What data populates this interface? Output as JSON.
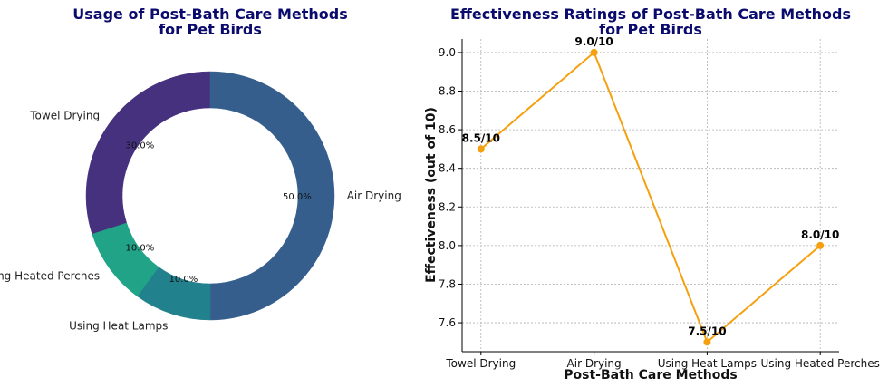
{
  "chart_data": [
    {
      "type": "pie",
      "style": "donut",
      "title_lines": [
        "Usage of Post-Bath Care Methods",
        "for Pet Birds"
      ],
      "slices": [
        {
          "label": "Towel Drying",
          "value": 30,
          "pct_label": "30.0%",
          "color": "#46317e"
        },
        {
          "label": "Air Drying",
          "value": 50,
          "pct_label": "50.0%",
          "color": "#355e8d"
        },
        {
          "label": "Using Heat Lamps",
          "value": 10,
          "pct_label": "10.0%",
          "color": "#21818c"
        },
        {
          "label": "Using Heated Perches",
          "value": 10,
          "pct_label": "10.0%",
          "color": "#20a386"
        }
      ]
    },
    {
      "type": "line",
      "title_lines": [
        "Effectiveness Ratings of Post-Bath Care Methods",
        "for Pet Birds"
      ],
      "categories": [
        "Towel Drying",
        "Air Drying",
        "Using Heat Lamps",
        "Using Heated Perches"
      ],
      "values": [
        8.5,
        9.0,
        7.5,
        8.0
      ],
      "data_labels": [
        "8.5/10",
        "9.0/10",
        "7.5/10",
        "8.0/10"
      ],
      "xlabel": "Post-Bath Care Methods",
      "ylabel": "Effectiveness (out of 10)",
      "ylim": [
        7.45,
        9.07
      ],
      "yticks": [
        7.6,
        7.8,
        8.0,
        8.2,
        8.4,
        8.6,
        8.8,
        9.0
      ],
      "ytick_labels": [
        "7.6",
        "7.8",
        "8.0",
        "8.2",
        "8.4",
        "8.6",
        "8.8",
        "9.0"
      ],
      "grid": true,
      "color": "#f5a00f"
    }
  ]
}
